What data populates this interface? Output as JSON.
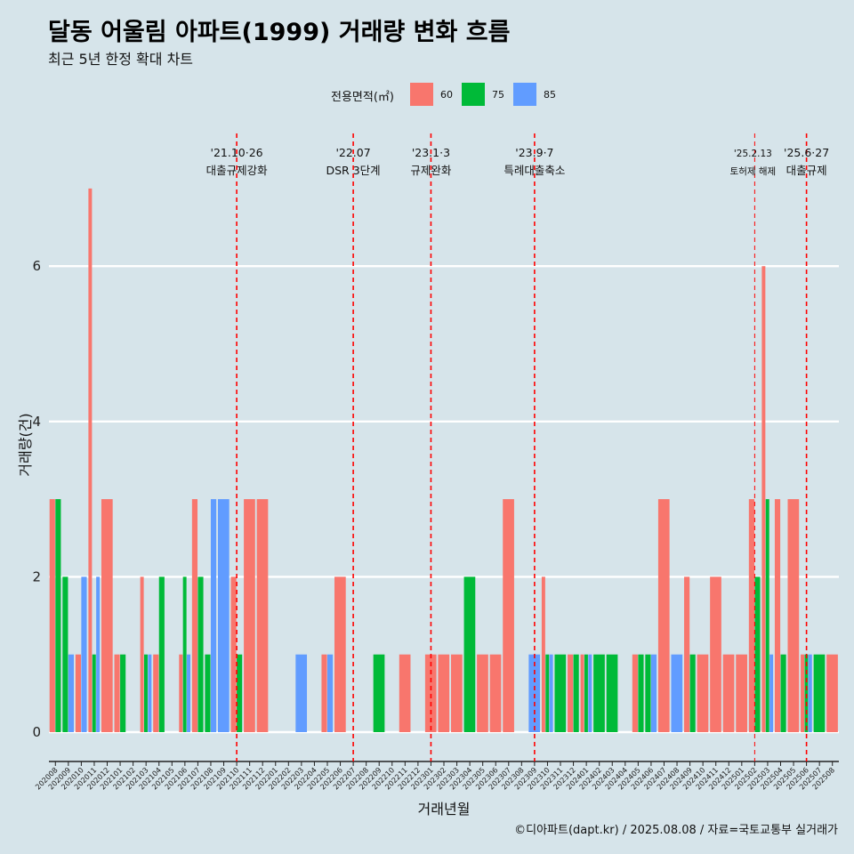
{
  "title": "달동 어울림 아파트(1999) 거래량 변화 흐름",
  "subtitle": "최근 5년 한정 확대 차트",
  "caption": "©디아파트(dapt.kr) / 2025.08.08 / 자료=국토교통부 실거래가",
  "legend": {
    "title": "전용면적(㎡)",
    "items": [
      {
        "label": "60",
        "color": "#f8766d"
      },
      {
        "label": "75",
        "color": "#00ba38"
      },
      {
        "label": "85",
        "color": "#619cff"
      }
    ]
  },
  "chart_data": {
    "type": "bar",
    "xlabel": "거래년월",
    "ylabel": "거래량(건)",
    "ylim": [
      0,
      7
    ],
    "yticks": [
      0,
      2,
      4,
      6
    ],
    "categories": [
      "202008",
      "202009",
      "202010",
      "202011",
      "202012",
      "202101",
      "202102",
      "202103",
      "202104",
      "202105",
      "202106",
      "202107",
      "202108",
      "202109",
      "202110",
      "202111",
      "202112",
      "202201",
      "202202",
      "202203",
      "202204",
      "202205",
      "202206",
      "202207",
      "202208",
      "202209",
      "202210",
      "202211",
      "202212",
      "202301",
      "202302",
      "202303",
      "202304",
      "202305",
      "202306",
      "202307",
      "202308",
      "202309",
      "202310",
      "202311",
      "202312",
      "202401",
      "202402",
      "202403",
      "202404",
      "202405",
      "202406",
      "202407",
      "202408",
      "202409",
      "202410",
      "202411",
      "202412",
      "202501",
      "202502",
      "202503",
      "202504",
      "202505",
      "202506",
      "202507",
      "202508"
    ],
    "series": [
      {
        "name": "60",
        "color": "#f8766d",
        "values": [
          3,
          0,
          1,
          7,
          3,
          1,
          0,
          2,
          1,
          0,
          1,
          3,
          0,
          0,
          2,
          3,
          3,
          0,
          0,
          0,
          0,
          1,
          2,
          0,
          0,
          0,
          0,
          1,
          0,
          1,
          1,
          1,
          0,
          1,
          1,
          3,
          0,
          0,
          2,
          0,
          1,
          1,
          0,
          0,
          0,
          1,
          0,
          3,
          0,
          2,
          1,
          2,
          1,
          1,
          3,
          6,
          3,
          3,
          1,
          0,
          1
        ]
      },
      {
        "name": "75",
        "color": "#00ba38",
        "values": [
          3,
          2,
          0,
          1,
          0,
          1,
          0,
          1,
          2,
          0,
          2,
          2,
          1,
          0,
          1,
          0,
          0,
          0,
          0,
          0,
          0,
          0,
          0,
          0,
          0,
          1,
          0,
          0,
          0,
          0,
          0,
          0,
          2,
          0,
          0,
          0,
          0,
          0,
          1,
          1,
          1,
          1,
          1,
          1,
          0,
          1,
          1,
          0,
          0,
          1,
          0,
          0,
          0,
          0,
          2,
          3,
          1,
          0,
          1,
          1,
          0
        ]
      },
      {
        "name": "85",
        "color": "#619cff",
        "values": [
          0,
          1,
          2,
          2,
          0,
          0,
          0,
          1,
          0,
          0,
          1,
          0,
          3,
          3,
          0,
          0,
          0,
          0,
          0,
          1,
          0,
          1,
          0,
          0,
          0,
          0,
          0,
          0,
          0,
          0,
          0,
          0,
          0,
          0,
          0,
          0,
          0,
          1,
          1,
          0,
          0,
          1,
          0,
          0,
          0,
          0,
          1,
          0,
          1,
          0,
          0,
          0,
          0,
          0,
          0,
          1,
          0,
          0,
          1,
          0,
          0
        ]
      }
    ],
    "events": [
      {
        "x": "202110",
        "date": "'21.10·26",
        "text": "대출규제강화"
      },
      {
        "x": "202207",
        "date": "'22.07",
        "text": "DSR 3단계"
      },
      {
        "x": "202301",
        "date": "'23.1·3",
        "text": "규제완화"
      },
      {
        "x": "202309",
        "date": "'23.9·7",
        "text": "특례대출축소"
      },
      {
        "x": "202502",
        "date": "'25.2.13",
        "text": "토허제 해제"
      },
      {
        "x": "202506",
        "date": "'25.6·27",
        "text": "대출규제"
      }
    ],
    "grid": true,
    "legend_position": "top"
  }
}
